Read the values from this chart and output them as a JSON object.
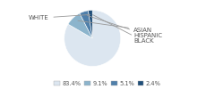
{
  "labels": [
    "WHITE",
    "ASIAN",
    "HISPANIC",
    "BLACK"
  ],
  "values": [
    83.4,
    9.1,
    5.1,
    2.4
  ],
  "colors": [
    "#dce6f0",
    "#8cb4cc",
    "#4f7faa",
    "#1f4e79"
  ],
  "legend_labels": [
    "83.4%",
    "9.1%",
    "5.1%",
    "2.4%"
  ],
  "figsize": [
    2.4,
    1.0
  ],
  "dpi": 100,
  "startangle": 90,
  "label_fontsize": 5.0,
  "legend_fontsize": 4.8
}
